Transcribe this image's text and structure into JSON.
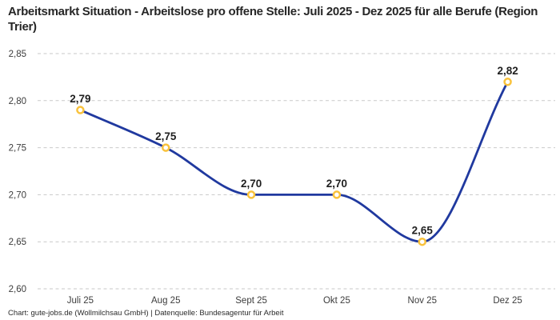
{
  "header": {
    "title": "Arbeitsmarkt Situation - Arbeitslose pro offene Stelle: Juli 2025 - Dez 2025 für alle Berufe (Region Trier)"
  },
  "footer": {
    "text": "Chart: gute-jobs.de (Wollmilchsau GmbH) | Datenquelle: Bundesagentur für Arbeit"
  },
  "chart_data": {
    "type": "line",
    "title": "Arbeitsmarkt Situation - Arbeitslose pro offene Stelle: Juli 2025 - Dez 2025 für alle Berufe (Region Trier)",
    "categories": [
      "Juli 25",
      "Aug 25",
      "Sept 25",
      "Okt 25",
      "Nov 25",
      "Dez 25"
    ],
    "values": [
      2.79,
      2.75,
      2.7,
      2.7,
      2.65,
      2.82
    ],
    "value_labels": [
      "2,79",
      "2,75",
      "2,70",
      "2,70",
      "2,65",
      "2,82"
    ],
    "y_ticks": [
      2.6,
      2.65,
      2.7,
      2.75,
      2.8,
      2.85
    ],
    "y_tick_labels": [
      "2,60",
      "2,65",
      "2,70",
      "2,75",
      "2,80",
      "2,85"
    ],
    "ylim": [
      2.6,
      2.85
    ],
    "xlabel": "",
    "ylabel": "",
    "legend": "none",
    "grid": "horizontal-dashed",
    "curve": "monotone",
    "colors": {
      "line": "#20399f",
      "marker_stroke": "#f9c23c",
      "marker_fill": "#ffffff",
      "grid": "#c9c9c9",
      "value_label": "#1f1f1f",
      "tick_label": "#3c3c3c",
      "title": "#262626"
    }
  }
}
